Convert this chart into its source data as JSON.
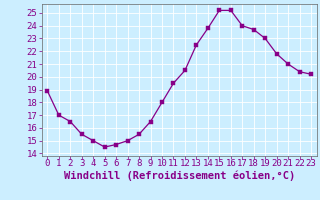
{
  "x": [
    0,
    1,
    2,
    3,
    4,
    5,
    6,
    7,
    8,
    9,
    10,
    11,
    12,
    13,
    14,
    15,
    16,
    17,
    18,
    19,
    20,
    21,
    22,
    23
  ],
  "y": [
    18.9,
    17.0,
    16.5,
    15.5,
    15.0,
    14.5,
    14.7,
    15.0,
    15.5,
    16.5,
    18.0,
    19.5,
    20.5,
    22.5,
    23.8,
    25.2,
    25.2,
    24.0,
    23.7,
    23.0,
    21.8,
    21.0,
    20.4,
    20.2
  ],
  "ylim": [
    13.8,
    25.7
  ],
  "yticks": [
    14,
    15,
    16,
    17,
    18,
    19,
    20,
    21,
    22,
    23,
    24,
    25
  ],
  "xlim": [
    -0.5,
    23.5
  ],
  "xlabel": "Windchill (Refroidissement éolien,°C)",
  "line_color": "#880088",
  "marker_color": "#880088",
  "bg_color": "#cceeff",
  "grid_color": "#aadddd",
  "tick_color": "#880088",
  "label_color": "#880088",
  "tick_fontsize": 6.5,
  "xlabel_fontsize": 7.5
}
